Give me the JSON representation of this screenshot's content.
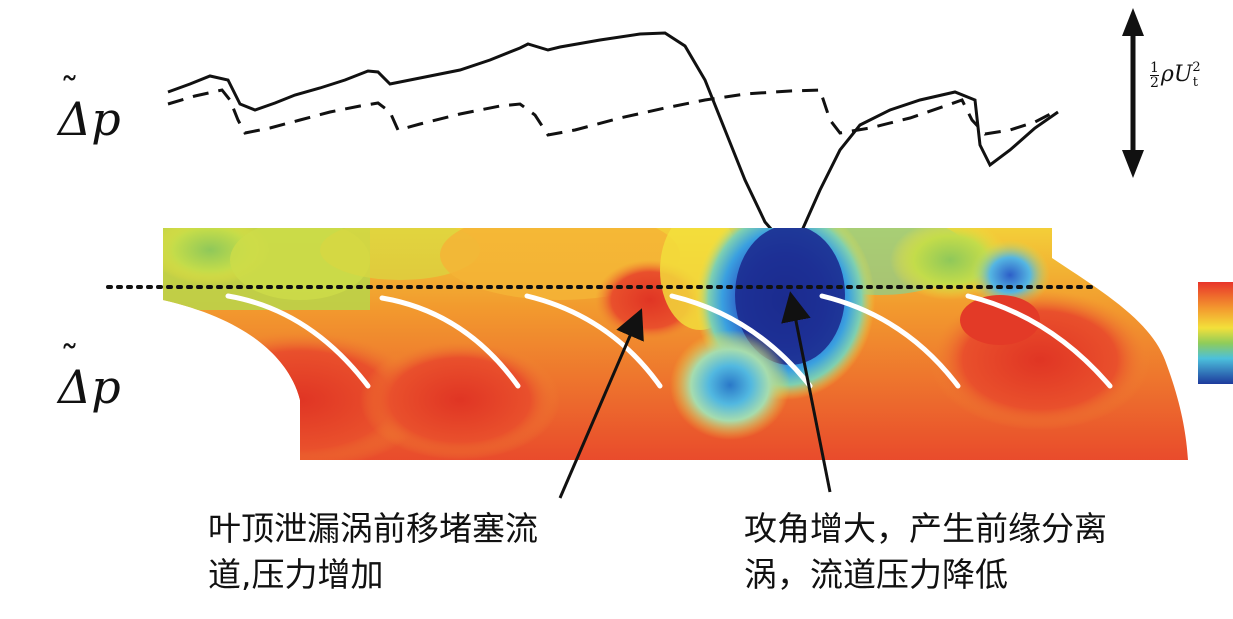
{
  "labels": {
    "upper_delta_p": "Δp",
    "lower_delta_p": "Δp",
    "scale_rho": "ρU",
    "scale_sub": "t",
    "scale_sup": "2",
    "scale_frac_num": "1",
    "scale_frac_den": "2"
  },
  "annotations": {
    "left_line1": "叶顶泄漏涡前移堵塞流",
    "left_line2": "道,压力增加",
    "right_line1": "攻角增大，产生前缘分离",
    "right_line2": "涡，流道压力降低"
  },
  "colors": {
    "high": "#e8402a",
    "orange": "#f29a2e",
    "yellow": "#f3e13c",
    "green": "#9fcf4e",
    "cyan": "#59c0dc",
    "blue": "#2255c4",
    "dark_blue": "#1a2a8c"
  }
}
